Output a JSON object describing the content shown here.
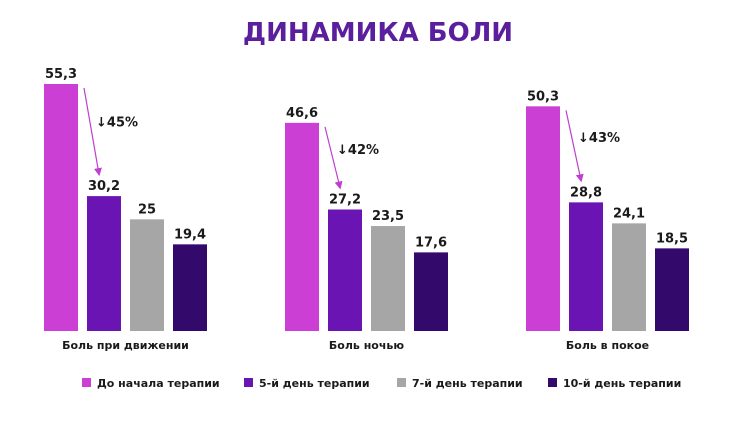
{
  "chart_data": {
    "type": "bar",
    "title": "ДИНАМИКА БОЛИ",
    "title_color": "#5b1f9e",
    "categories": [
      "Боль при движении",
      "Боль ночью",
      "Боль в покое"
    ],
    "series": [
      {
        "name": "До начала терапии",
        "color": "#cc3fd4",
        "values": [
          55.3,
          46.6,
          50.3
        ],
        "labels": [
          "55,3",
          "46,6",
          "50,3"
        ]
      },
      {
        "name": "5-й день терапии",
        "color": "#6a14b4",
        "values": [
          30.2,
          27.2,
          28.8
        ],
        "labels": [
          "30,2",
          "27,2",
          "28,8"
        ]
      },
      {
        "name": "7-й день терапии",
        "color": "#a6a6a6",
        "values": [
          25,
          23.5,
          24.1
        ],
        "labels": [
          "25",
          "23,5",
          "24,1"
        ]
      },
      {
        "name": "10-й день терапии",
        "color": "#33096b",
        "values": [
          19.4,
          17.6,
          18.5
        ],
        "labels": [
          "19,4",
          "17,6",
          "18,5"
        ]
      }
    ],
    "annotations": [
      "↓45%",
      "↓42%",
      "↓43%"
    ],
    "arrow_color": "#c03fd0",
    "ylim": [
      0,
      60
    ],
    "grid": false,
    "legend_position": "bottom"
  }
}
